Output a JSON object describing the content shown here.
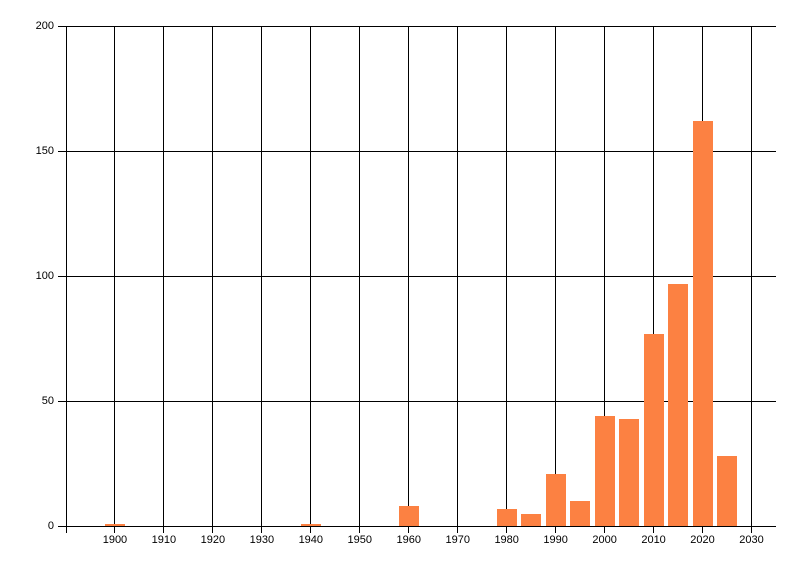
{
  "chart_data": {
    "type": "bar",
    "title": "",
    "xlabel": "",
    "ylabel": "",
    "x": [
      1900,
      1940,
      1960,
      1980,
      1985,
      1990,
      1995,
      2000,
      2005,
      2010,
      2015,
      2020,
      2025
    ],
    "values": [
      1,
      1,
      8,
      7,
      5,
      21,
      10,
      44,
      43,
      77,
      97,
      162,
      28
    ],
    "xlim": [
      1890,
      2035
    ],
    "ylim": [
      0,
      200
    ],
    "x_ticks": [
      1900,
      1910,
      1920,
      1930,
      1940,
      1950,
      1960,
      1970,
      1980,
      1990,
      2000,
      2010,
      2020,
      2030
    ],
    "y_ticks": [
      0,
      50,
      100,
      150,
      200
    ],
    "grid": "on",
    "legend": "none",
    "bar_color": "#fc8142",
    "grid_color": "#000000",
    "axis_color": "#000000",
    "text_color": "#000000",
    "background": "#ffffff"
  }
}
